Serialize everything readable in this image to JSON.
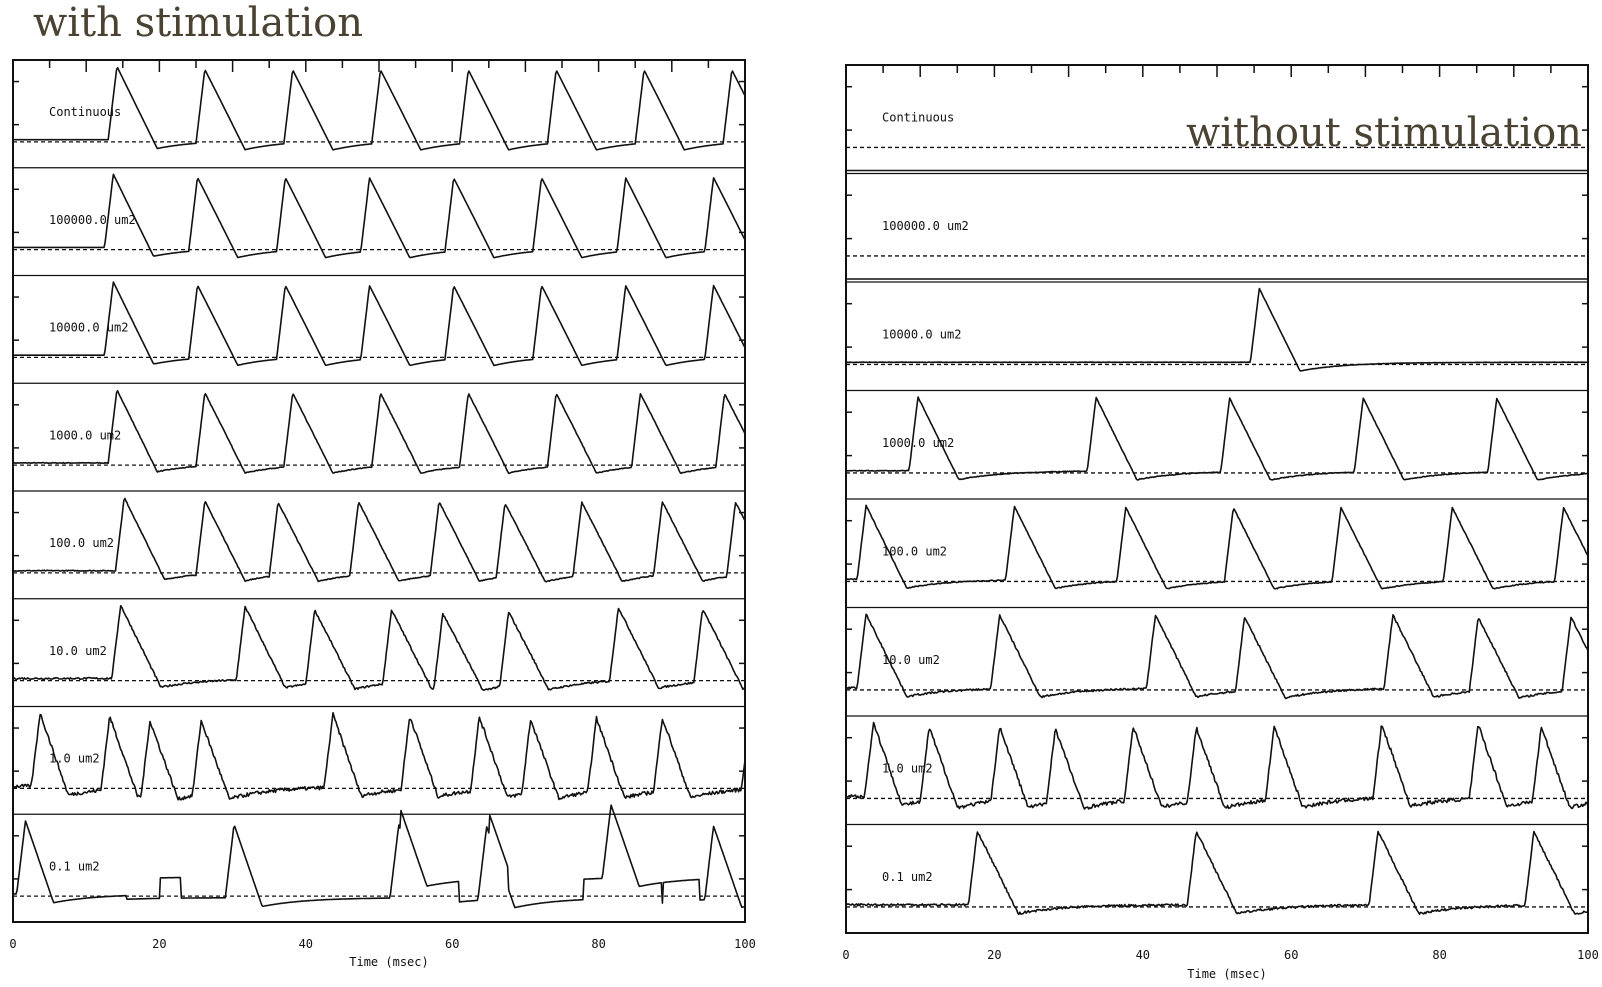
{
  "headings": {
    "left": "with stimulation",
    "right": "without stimulation"
  },
  "colors": {
    "heading": "#4a4232",
    "trace": "#111111",
    "frame": "#111111"
  },
  "chart_data": [
    {
      "type": "line",
      "title": "with stimulation",
      "xlabel": "Time (msec)",
      "xlim": [
        0,
        100
      ],
      "x_ticks": [
        "0",
        "20",
        "40",
        "60",
        "80",
        "100"
      ],
      "grid": false,
      "series": [
        {
          "name": "Continuous",
          "spike_times_ms": [
            13,
            25,
            37,
            49,
            61,
            73,
            85,
            97
          ],
          "noise": 0
        },
        {
          "name": "100000.0 um2",
          "spike_times_ms": [
            12.5,
            24,
            36,
            47.5,
            59,
            71,
            82.5,
            94.5
          ],
          "noise": 0
        },
        {
          "name": "10000.0 um2",
          "spike_times_ms": [
            12.5,
            24,
            36,
            47.5,
            59,
            71,
            82.5,
            94.5
          ],
          "noise": 0
        },
        {
          "name": "1000.0 um2",
          "spike_times_ms": [
            13,
            25,
            37,
            49,
            61,
            73,
            84.5,
            96
          ],
          "noise": 0.5
        },
        {
          "name": "100.0 um2",
          "spike_times_ms": [
            14,
            25,
            35,
            46,
            57,
            66,
            76.5,
            87.5,
            97.5
          ],
          "noise": 0.6
        },
        {
          "name": "10.0 um2",
          "spike_times_ms": [
            13.5,
            30.5,
            40,
            50.5,
            57.5,
            66.5,
            81.5,
            93
          ],
          "noise": 1.2
        },
        {
          "name": "1.0 um2",
          "spike_times_ms": [
            2.5,
            12,
            17.5,
            24.5,
            42.5,
            53,
            62.5,
            69.5,
            78.5,
            87.5,
            99.5
          ],
          "noise": 2.5
        },
        {
          "name": "0.1 um2",
          "spike_times_ms": [
            0.5,
            29,
            51.5,
            63.5,
            80.5,
            94.5
          ],
          "noise": 4
        }
      ]
    },
    {
      "type": "line",
      "title": "without stimulation",
      "xlabel": "Time (msec)",
      "xlim": [
        0,
        100
      ],
      "x_ticks": [
        "0",
        "20",
        "40",
        "60",
        "80",
        "100"
      ],
      "grid": false,
      "series": [
        {
          "name": "Continuous",
          "spike_times_ms": [],
          "noise": 0
        },
        {
          "name": "100000.0 um2",
          "spike_times_ms": [],
          "noise": 0
        },
        {
          "name": "10000.0 um2",
          "spike_times_ms": [
            54.5
          ],
          "noise": 0.2
        },
        {
          "name": "1000.0 um2",
          "spike_times_ms": [
            8.5,
            32.5,
            50.5,
            68.5,
            86.5
          ],
          "noise": 0.5
        },
        {
          "name": "100.0 um2",
          "spike_times_ms": [
            1.5,
            21.5,
            36.5,
            51,
            65.5,
            80.5,
            95.5
          ],
          "noise": 0.6
        },
        {
          "name": "10.0 um2",
          "spike_times_ms": [
            1.5,
            19.5,
            40.5,
            52.5,
            72.5,
            84,
            96.5
          ],
          "noise": 1.2
        },
        {
          "name": "1.0 um2",
          "spike_times_ms": [
            2.5,
            10,
            19.5,
            27,
            37.5,
            46,
            56.5,
            71,
            84,
            92.5
          ],
          "noise": 2.5
        },
        {
          "name": "0.1 um2",
          "spike_times_ms": [
            16.5,
            46,
            70.5,
            91.5
          ],
          "noise": 1.5
        }
      ]
    }
  ]
}
